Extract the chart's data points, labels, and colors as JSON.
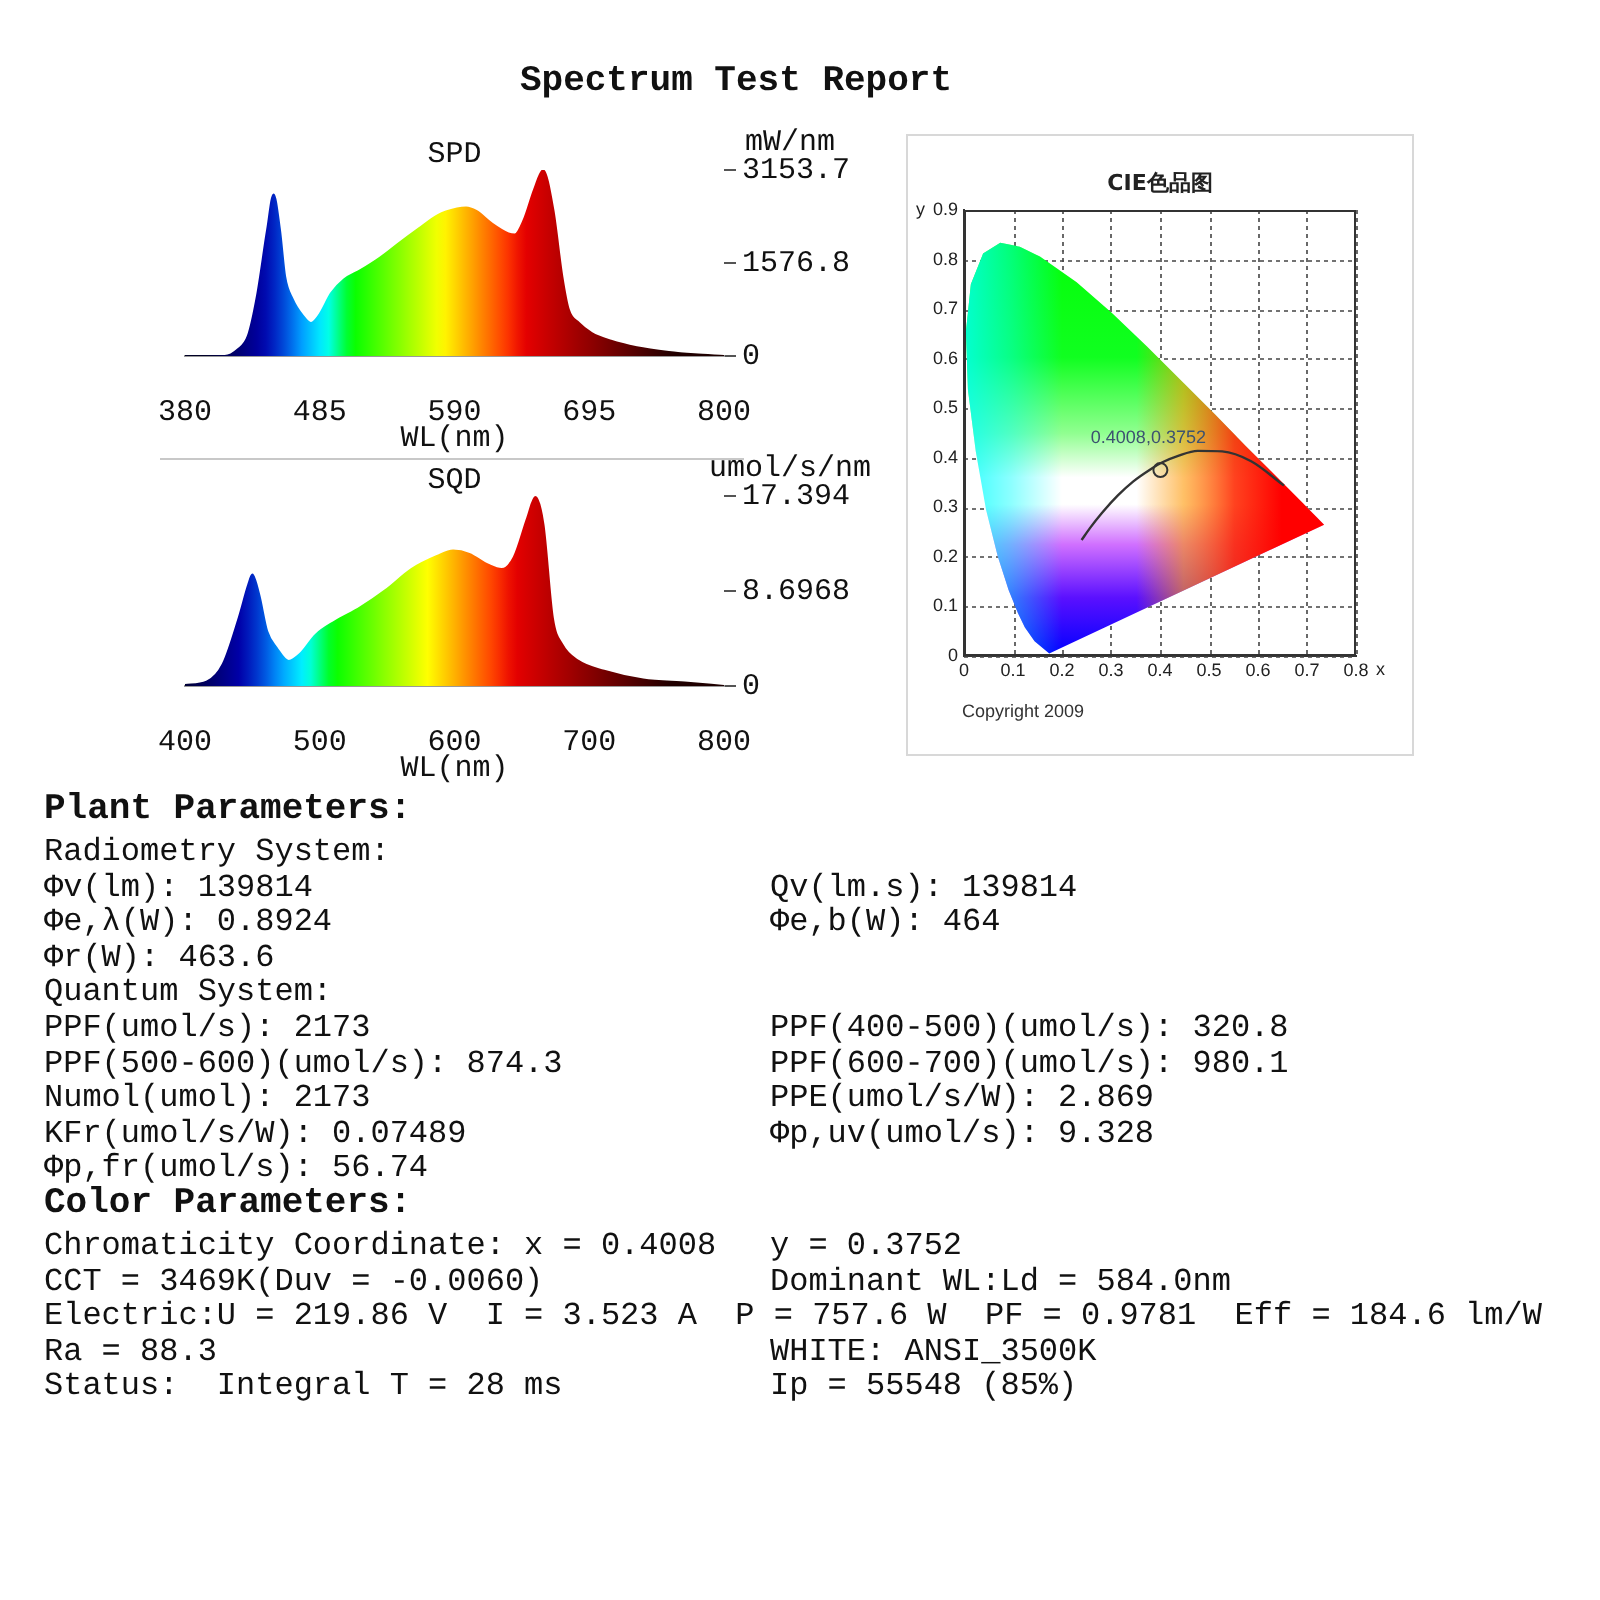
{
  "chart_data": [
    {
      "type": "other",
      "title": "Spectrum Test Report"
    },
    {
      "type": "area",
      "title": "SPD",
      "xlabel": "WL(nm)",
      "ylabel": "mW/nm",
      "x": [
        380,
        411,
        421,
        429,
        436,
        444,
        449,
        454,
        458,
        464,
        472,
        478,
        484,
        494,
        504,
        517,
        532,
        547,
        562,
        577,
        592,
        599,
        607,
        619,
        632,
        637,
        644,
        652,
        659,
        667,
        674,
        679,
        687,
        697,
        712,
        732,
        757,
        777,
        800
      ],
      "values": [
        0,
        0,
        110,
        340,
        1010,
        2140,
        2740,
        2140,
        1350,
        960,
        680,
        560,
        680,
        1070,
        1300,
        1460,
        1670,
        1920,
        2160,
        2390,
        2500,
        2520,
        2460,
        2250,
        2080,
        2060,
        2310,
        2820,
        3150,
        2480,
        1350,
        790,
        560,
        390,
        260,
        150,
        70,
        30,
        0
      ],
      "xlim": [
        380,
        800
      ],
      "xticks": [
        380,
        485,
        590,
        695,
        800
      ],
      "ylim": [
        0,
        3153.7
      ],
      "yticks": [
        0,
        1576.8,
        3153.7
      ]
    },
    {
      "type": "area",
      "title": "SQD",
      "xlabel": "WL(nm)",
      "ylabel": "umol/s/nm",
      "x": [
        400,
        416,
        428,
        440,
        447,
        450,
        455,
        461,
        468,
        477,
        485,
        497,
        511,
        530,
        549,
        568,
        587,
        599,
        611,
        625,
        635,
        644,
        654,
        660,
        666,
        673,
        680,
        692,
        711,
        740,
        773,
        800
      ],
      "values": [
        0.1,
        0.4,
        2,
        6.3,
        9.3,
        10.2,
        8.4,
        5,
        3.5,
        2.3,
        2.9,
        4.7,
        5.9,
        7.2,
        8.8,
        10.7,
        11.9,
        12.4,
        12.1,
        11.1,
        10.7,
        11.8,
        15.4,
        17.3,
        14.8,
        6.2,
        3.8,
        2.3,
        1.4,
        0.6,
        0.3,
        0
      ],
      "xlim": [
        400,
        800
      ],
      "xticks": [
        400,
        500,
        600,
        700,
        800
      ],
      "ylim": [
        0,
        17.394
      ],
      "yticks": [
        0,
        8.6968,
        17.394
      ]
    },
    {
      "type": "scatter",
      "title": "CIE色品图",
      "xlabel": "x",
      "ylabel": "y",
      "xlim": [
        0,
        0.8
      ],
      "xticks": [
        0,
        0.1,
        0.2,
        0.3,
        0.4,
        0.5,
        0.6,
        0.7,
        0.8
      ],
      "ylim": [
        0,
        0.9
      ],
      "yticks": [
        0,
        0.1,
        0.2,
        0.3,
        0.4,
        0.5,
        0.6,
        0.7,
        0.8,
        0.9
      ],
      "grid": true,
      "annotations": [
        "Copyright 2009"
      ],
      "series": [
        {
          "type": "area",
          "x": [
            0.174,
            0.144,
            0.124,
            0.11,
            0.091,
            0.069,
            0.045,
            0.024,
            0.008,
            0.004,
            0.014,
            0.039,
            0.074,
            0.114,
            0.155,
            0.23,
            0.302,
            0.373,
            0.444,
            0.513,
            0.575,
            0.627,
            0.692,
            0.719,
            0.735,
            0.174
          ],
          "values": [
            0.005,
            0.03,
            0.058,
            0.087,
            0.133,
            0.201,
            0.295,
            0.413,
            0.538,
            0.655,
            0.75,
            0.812,
            0.834,
            0.826,
            0.806,
            0.754,
            0.692,
            0.625,
            0.555,
            0.487,
            0.424,
            0.373,
            0.308,
            0.281,
            0.265,
            0.005
          ]
        },
        {
          "type": "line",
          "color": "#333333",
          "x": [
            0.24,
            0.257,
            0.281,
            0.314,
            0.345,
            0.381,
            0.405,
            0.437,
            0.477,
            0.527,
            0.586,
            0.653
          ],
          "values": [
            0.234,
            0.258,
            0.288,
            0.324,
            0.352,
            0.377,
            0.391,
            0.404,
            0.414,
            0.413,
            0.393,
            0.344
          ]
        },
        {
          "type": "scatter",
          "color": "#333333",
          "marker": "circle",
          "x": [
            0.4008
          ],
          "values": [
            0.3752
          ],
          "value_labels": [
            "0.4008,0.3752"
          ]
        }
      ]
    },
    {
      "type": "other",
      "annotations": [
        "Plant Parameters:",
        "Radiometry System:",
        "Φv(lm): 139814",
        "Qv(lm.s): 139814",
        "Φe,λ(W): 0.8924",
        "Φe,b(W): 464",
        "Φr(W): 463.6",
        "Quantum System:",
        "PPF(umol/s): 2173",
        "PPF(400-500)(umol/s): 320.8",
        "PPF(500-600)(umol/s): 874.3",
        "PPF(600-700)(umol/s): 980.1",
        "Numol(umol): 2173",
        "PPE(umol/s/W): 2.869",
        "KFr(umol/s/W): 0.07489",
        "Φp,uv(umol/s): 9.328",
        "Φp,fr(umol/s): 56.74",
        "Color Parameters:",
        "Chromaticity Coordinate: x = 0.4008",
        "y = 0.3752",
        "CCT = 3469K(Duv = -0.0060)",
        "Dominant WL:Ld = 584.0nm",
        "Electric:U = 219.86 V  I = 3.523 A  P = 757.6 W  PF = 0.9781  Eff = 184.6 lm/W",
        "Ra = 88.3",
        "WHITE: ANSI_3500K",
        "Status:  Integral T = 28 ms",
        "Ip = 55548 (85%)"
      ]
    }
  ]
}
